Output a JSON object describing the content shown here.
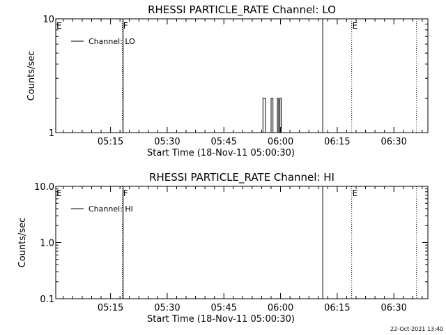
{
  "stamp": "22-Oct-2021 13:40",
  "chart_data": [
    {
      "type": "line",
      "title": "RHESSI PARTICLE_RATE Channel: LO",
      "xlabel": "Start Time (18-Nov-11 05:00:30)",
      "ylabel": "Counts/sec",
      "y_scale": "log",
      "ylim": [
        1,
        10
      ],
      "xlim": [
        "05:00:30",
        "06:39:00"
      ],
      "y_ticks": [
        {
          "v": 1,
          "label": "1"
        },
        {
          "v": 10,
          "label": "10"
        }
      ],
      "x_ticks": [
        {
          "t": "05:15",
          "label": "05:15"
        },
        {
          "t": "05:30",
          "label": "05:30"
        },
        {
          "t": "05:45",
          "label": "05:45"
        },
        {
          "t": "06:00",
          "label": "06:00"
        },
        {
          "t": "06:15",
          "label": "06:15"
        },
        {
          "t": "06:30",
          "label": "06:30"
        }
      ],
      "legend": {
        "label": "Channel: LO",
        "placement": "top-left"
      },
      "series": [
        {
          "name": "Channel: LO",
          "x": [
            "05:55:20",
            "05:55:20",
            "05:56:00",
            "05:56:00",
            "05:57:30",
            "05:57:30",
            "05:58:00",
            "05:58:00",
            "05:59:10",
            "05:59:10",
            "05:59:30",
            "05:59:30",
            "05:59:50",
            "05:59:50",
            "06:00:10",
            "06:00:10"
          ],
          "values": [
            1,
            2,
            2,
            1,
            1,
            2,
            2,
            1,
            1,
            2,
            2,
            1,
            1,
            2,
            2,
            1
          ]
        }
      ],
      "markers": [
        {
          "t": "05:00:30",
          "label": "E",
          "style": "dotted"
        },
        {
          "t": "05:18:10",
          "label": "F",
          "style": "dotted"
        },
        {
          "t": "05:18:20",
          "label": "",
          "style": "solid"
        },
        {
          "t": "06:11:10",
          "label": "",
          "style": "solid"
        },
        {
          "t": "06:18:50",
          "label": "E",
          "style": "dotted"
        },
        {
          "t": "06:36:00",
          "label": "",
          "style": "dotted"
        }
      ]
    },
    {
      "type": "line",
      "title": "RHESSI PARTICLE_RATE Channel: HI",
      "xlabel": "Start Time (18-Nov-11 05:00:30)",
      "ylabel": "Counts/sec",
      "y_scale": "log",
      "ylim": [
        0.1,
        10
      ],
      "xlim": [
        "05:00:30",
        "06:39:00"
      ],
      "y_ticks": [
        {
          "v": 0.1,
          "label": "0.1"
        },
        {
          "v": 1,
          "label": "1.0"
        },
        {
          "v": 10,
          "label": "10.0"
        }
      ],
      "x_ticks": [
        {
          "t": "05:15",
          "label": "05:15"
        },
        {
          "t": "05:30",
          "label": "05:30"
        },
        {
          "t": "05:45",
          "label": "05:45"
        },
        {
          "t": "06:00",
          "label": "06:00"
        },
        {
          "t": "06:15",
          "label": "06:15"
        },
        {
          "t": "06:30",
          "label": "06:30"
        }
      ],
      "legend": {
        "label": "Channel: HI",
        "placement": "top-left"
      },
      "series": [
        {
          "name": "Channel: HI",
          "x": [],
          "values": []
        }
      ],
      "markers": [
        {
          "t": "05:00:30",
          "label": "E",
          "style": "dotted"
        },
        {
          "t": "05:18:10",
          "label": "F",
          "style": "dotted"
        },
        {
          "t": "05:18:20",
          "label": "",
          "style": "solid"
        },
        {
          "t": "06:11:10",
          "label": "",
          "style": "solid"
        },
        {
          "t": "06:18:50",
          "label": "E",
          "style": "dotted"
        },
        {
          "t": "06:36:00",
          "label": "",
          "style": "dotted"
        }
      ]
    }
  ]
}
